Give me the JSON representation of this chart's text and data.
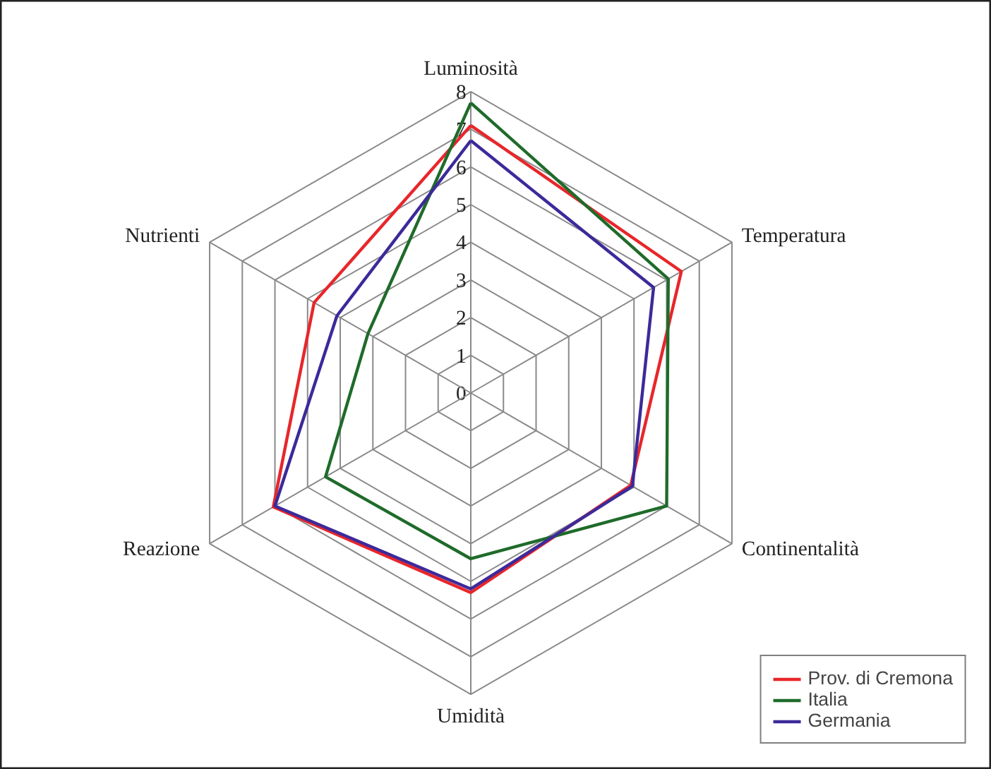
{
  "chart_data": {
    "type": "radar",
    "categories": [
      "Luminosità",
      "Temperatura",
      "Continentalità",
      "Umidità",
      "Reazione",
      "Nutrienti"
    ],
    "ylim": [
      0,
      8
    ],
    "yticks": [
      0,
      1,
      2,
      3,
      4,
      5,
      6,
      7,
      8
    ],
    "legend": "bottom right",
    "series": [
      {
        "name": "Prov. di Cremona",
        "color": "#e8262b",
        "values": [
          7.1,
          6.45,
          4.9,
          5.3,
          6.05,
          4.8
        ]
      },
      {
        "name": "Italia",
        "color": "#1f6b2a",
        "values": [
          7.7,
          6.05,
          6.0,
          4.4,
          4.45,
          3.15
        ]
      },
      {
        "name": "Germania",
        "color": "#3c2a9a",
        "values": [
          6.7,
          5.6,
          4.95,
          5.2,
          6.0,
          4.1
        ]
      }
    ]
  }
}
